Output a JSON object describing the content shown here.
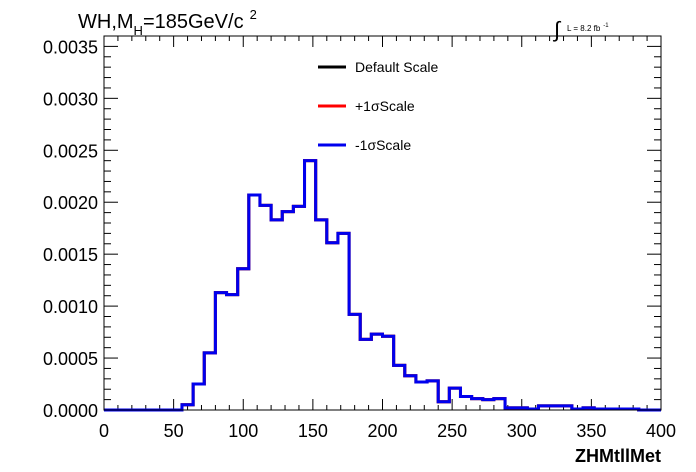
{
  "title": {
    "main": "WH,M",
    "sub": "H",
    "rest": "=185GeV/c",
    "sup": "2"
  },
  "lumi": {
    "symbol": "∫",
    "text": "L = 8.2 fb",
    "sup": "-1"
  },
  "xaxis_title": "ZHMtllMet",
  "colors": {
    "default": "#000000",
    "plus": "#ff0000",
    "minus": "#0000ee",
    "frame": "#000000"
  },
  "legend": [
    {
      "label": "Default Scale",
      "color": "#000000"
    },
    {
      "label": "+1σScale",
      "color": "#ff0000"
    },
    {
      "label": "-1σScale",
      "color": "#0000ee"
    }
  ],
  "chart_data": {
    "type": "line",
    "step": true,
    "xlim": [
      0,
      400
    ],
    "ylim": [
      0,
      0.0036
    ],
    "xticks": [
      "0",
      "50",
      "100",
      "150",
      "200",
      "250",
      "300",
      "350",
      "400"
    ],
    "yticks": [
      "0.0000",
      "0.0005",
      "0.0010",
      "0.0015",
      "0.0020",
      "0.0025",
      "0.0030",
      "0.0035"
    ],
    "xlabel": "ZHMtllMet",
    "ylabel": "",
    "bin_width": 8,
    "bin_starts": [
      0,
      8,
      16,
      24,
      32,
      40,
      48,
      56,
      64,
      72,
      80,
      88,
      96,
      104,
      112,
      120,
      128,
      136,
      144,
      152,
      160,
      168,
      176,
      184,
      192,
      200,
      208,
      216,
      224,
      232,
      240,
      248,
      256,
      264,
      272,
      280,
      288,
      296,
      304,
      312,
      320,
      328,
      336,
      344,
      352,
      360,
      368,
      376,
      384,
      392
    ],
    "series": [
      {
        "name": "Default Scale",
        "values": [
          0,
          0,
          0,
          0,
          0,
          0,
          0,
          5e-05,
          0.00025,
          0.00055,
          0.00113,
          0.00111,
          0.00136,
          0.00207,
          0.00197,
          0.00183,
          0.00191,
          0.00196,
          0.0024,
          0.00183,
          0.00161,
          0.0017,
          0.00092,
          0.00068,
          0.00073,
          0.00071,
          0.00043,
          0.00033,
          0.00027,
          0.00028,
          8e-05,
          0.00021,
          0.00013,
          0.00011,
          0.0001,
          0.00011,
          2e-05,
          2e-05,
          1e-05,
          4e-05,
          4e-05,
          4e-05,
          1e-05,
          2e-05,
          1e-05,
          1e-05,
          1e-05,
          1e-05,
          0,
          0
        ]
      },
      {
        "name": "+1σScale",
        "values": [
          0,
          0,
          0,
          0,
          0,
          0,
          0,
          5e-05,
          0.00025,
          0.00055,
          0.00113,
          0.00111,
          0.00136,
          0.00207,
          0.00197,
          0.00183,
          0.00191,
          0.00196,
          0.0024,
          0.00183,
          0.00161,
          0.0017,
          0.00092,
          0.00068,
          0.00073,
          0.00071,
          0.00043,
          0.00033,
          0.00027,
          0.00028,
          8e-05,
          0.00021,
          0.00013,
          0.00011,
          0.0001,
          0.00011,
          2e-05,
          2e-05,
          1e-05,
          4e-05,
          4e-05,
          4e-05,
          1e-05,
          2e-05,
          1e-05,
          1e-05,
          1e-05,
          1e-05,
          0,
          0
        ]
      },
      {
        "name": "-1σScale",
        "values": [
          0,
          0,
          0,
          0,
          0,
          0,
          0,
          5e-05,
          0.00025,
          0.00055,
          0.00113,
          0.00111,
          0.00136,
          0.00207,
          0.00197,
          0.00183,
          0.00191,
          0.00196,
          0.0024,
          0.00183,
          0.00161,
          0.0017,
          0.00092,
          0.00068,
          0.00073,
          0.00071,
          0.00043,
          0.00033,
          0.00027,
          0.00028,
          8e-05,
          0.00021,
          0.00013,
          0.00011,
          0.0001,
          0.00011,
          2e-05,
          2e-05,
          1e-05,
          4e-05,
          4e-05,
          4e-05,
          1e-05,
          2e-05,
          1e-05,
          1e-05,
          1e-05,
          1e-05,
          0,
          0
        ]
      }
    ]
  }
}
